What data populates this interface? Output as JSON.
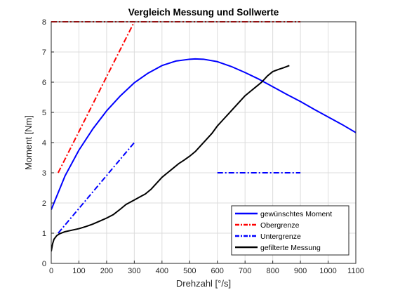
{
  "chart_data": {
    "type": "line",
    "title": "Vergleich Messung und Sollwerte",
    "xlabel": "Drehzahl [°/s]",
    "ylabel": "Moment [Nm]",
    "xlim": [
      0,
      1100
    ],
    "ylim": [
      0,
      8
    ],
    "xticks": [
      0,
      100,
      200,
      300,
      400,
      500,
      600,
      700,
      800,
      900,
      1000,
      1100
    ],
    "yticks": [
      0,
      1,
      2,
      3,
      4,
      5,
      6,
      7,
      8
    ],
    "grid": true,
    "legend_position": "bottom-right",
    "colors": {
      "blue": "#0000ff",
      "red": "#ff0000",
      "black": "#000000",
      "grid": "#dcdcdc"
    },
    "series": [
      {
        "name": "gewünschtes Moment",
        "color": "#0000ff",
        "style": "solid",
        "x": [
          0,
          50,
          100,
          150,
          200,
          250,
          300,
          350,
          400,
          450,
          500,
          520,
          550,
          600,
          650,
          700,
          750,
          800,
          850,
          900,
          950,
          1000,
          1050,
          1100
        ],
        "y": [
          1.78,
          2.9,
          3.75,
          4.45,
          5.05,
          5.55,
          5.98,
          6.3,
          6.55,
          6.7,
          6.76,
          6.77,
          6.76,
          6.68,
          6.52,
          6.32,
          6.1,
          5.85,
          5.6,
          5.36,
          5.1,
          4.85,
          4.6,
          4.33
        ]
      },
      {
        "name": "Obergrenze",
        "color": "#ff0000",
        "style": "dashdot",
        "segments": [
          {
            "x": [
              25,
              300
            ],
            "y": [
              3.0,
              8.0
            ]
          },
          {
            "x": [
              0,
              900
            ],
            "y": [
              8.0,
              8.0
            ]
          }
        ]
      },
      {
        "name": "Untergrenze",
        "color": "#0000ff",
        "style": "dashdot",
        "segments": [
          {
            "x": [
              25,
              300
            ],
            "y": [
              1.0,
              4.0
            ]
          },
          {
            "x": [
              600,
              900
            ],
            "y": [
              3.0,
              3.0
            ]
          }
        ]
      },
      {
        "name": "gefilterte Messung",
        "color": "#000000",
        "style": "solid",
        "x": [
          0,
          2,
          5,
          10,
          20,
          30,
          50,
          75,
          100,
          125,
          150,
          175,
          200,
          225,
          250,
          270,
          280,
          300,
          320,
          340,
          360,
          380,
          400,
          420,
          440,
          460,
          480,
          500,
          520,
          540,
          560,
          580,
          600,
          620,
          640,
          660,
          680,
          700,
          720,
          740,
          760,
          780,
          800,
          820,
          840,
          860
        ],
        "y": [
          0.4,
          0.5,
          0.65,
          0.8,
          0.92,
          0.98,
          1.05,
          1.1,
          1.15,
          1.22,
          1.3,
          1.4,
          1.5,
          1.62,
          1.8,
          1.95,
          2.0,
          2.1,
          2.2,
          2.3,
          2.45,
          2.65,
          2.85,
          3.0,
          3.15,
          3.3,
          3.42,
          3.55,
          3.7,
          3.9,
          4.1,
          4.3,
          4.55,
          4.75,
          4.95,
          5.15,
          5.35,
          5.55,
          5.7,
          5.85,
          6.0,
          6.2,
          6.35,
          6.42,
          6.48,
          6.55
        ]
      }
    ]
  }
}
